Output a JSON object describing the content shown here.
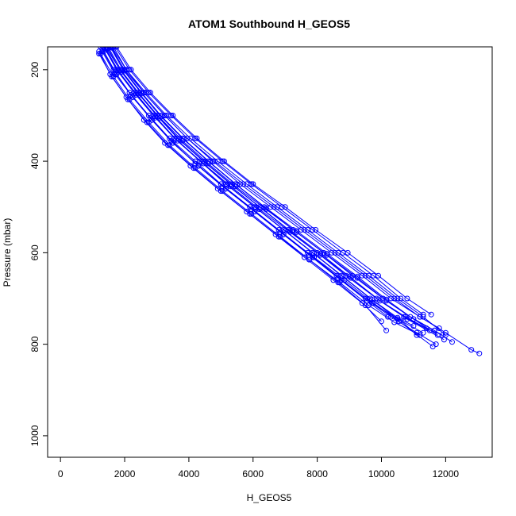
{
  "chart_data": {
    "type": "scatter",
    "title": "ATOM1 Southbound H_GEOS5",
    "xlabel": "H_GEOS5",
    "ylabel": "Pressure (mbar)",
    "xlim": [
      -400,
      13450
    ],
    "ylim": [
      1047,
      150
    ],
    "y_reversed": true,
    "x_ticks": [
      0,
      2000,
      4000,
      6000,
      8000,
      10000,
      12000
    ],
    "y_ticks": [
      200,
      400,
      600,
      800,
      1000
    ],
    "x_tick_labels": [
      "0",
      "2000",
      "4000",
      "6000",
      "8000",
      "10000",
      "12000"
    ],
    "y_tick_labels": [
      "200",
      "400",
      "600",
      "800",
      "1000"
    ],
    "grid": false,
    "legend": "none",
    "series_color": "#0000ff",
    "marker": "open-circle",
    "series": [
      {
        "x": [
          1250,
          1650,
          2150,
          2750,
          3400,
          4200,
          5000,
          5900,
          6800,
          7700,
          8600,
          9500,
          10300,
          11100,
          11700
        ],
        "y": [
          150,
          200,
          250,
          300,
          350,
          400,
          450,
          500,
          550,
          600,
          650,
          700,
          740,
          775,
          800
        ]
      },
      {
        "x": [
          1350,
          1750,
          2300,
          2900,
          3550,
          4350,
          5150,
          6050,
          6950,
          7850,
          8750,
          9650,
          10500,
          11300
        ],
        "y": [
          150,
          200,
          250,
          300,
          350,
          400,
          450,
          500,
          550,
          600,
          650,
          700,
          745,
          775
        ]
      },
      {
        "x": [
          1450,
          1850,
          2400,
          3000,
          3650,
          4450,
          5300,
          6200,
          7100,
          8000,
          8900,
          9850,
          10700,
          11500
        ],
        "y": [
          150,
          200,
          250,
          300,
          350,
          400,
          450,
          500,
          550,
          600,
          650,
          700,
          740,
          770
        ]
      },
      {
        "x": [
          1550,
          1950,
          2500,
          3100,
          3800,
          4600,
          5450,
          6350,
          7250,
          8200,
          9100,
          10050,
          10900,
          11650,
          12200
        ],
        "y": [
          150,
          200,
          250,
          300,
          350,
          400,
          450,
          500,
          550,
          600,
          650,
          700,
          740,
          770,
          795
        ]
      },
      {
        "x": [
          1650,
          2050,
          2600,
          3250,
          3950,
          4750,
          5600,
          6550,
          7500,
          8450,
          9400,
          10300,
          11200,
          12000,
          12800,
          13050
        ],
        "y": [
          150,
          200,
          250,
          300,
          350,
          400,
          450,
          500,
          550,
          600,
          650,
          700,
          740,
          775,
          812,
          820
        ]
      },
      {
        "x": [
          1300,
          1700,
          2200,
          2800,
          3450,
          4200,
          5050,
          5950,
          6850,
          7750,
          8650,
          9550,
          10200
        ],
        "y": [
          155,
          205,
          255,
          305,
          355,
          405,
          455,
          505,
          555,
          605,
          655,
          705,
          740
        ]
      },
      {
        "x": [
          1400,
          1800,
          2350,
          2950,
          3600,
          4400,
          5200,
          6100,
          7000,
          7900,
          8800,
          9700,
          10500,
          11000
        ],
        "y": [
          152,
          202,
          252,
          302,
          352,
          402,
          452,
          502,
          552,
          602,
          652,
          702,
          742,
          760
        ]
      },
      {
        "x": [
          1500,
          1900,
          2450,
          3050,
          3700,
          4500,
          5350,
          6250,
          7150,
          8100,
          9000,
          9900,
          10750,
          11400,
          11900
        ],
        "y": [
          152,
          202,
          252,
          302,
          352,
          402,
          452,
          502,
          552,
          602,
          652,
          702,
          740,
          765,
          780
        ]
      },
      {
        "x": [
          1600,
          2000,
          2550,
          3150,
          3850,
          4650,
          5500,
          6400,
          7350,
          8300,
          9250,
          10150,
          11000,
          11750
        ],
        "y": [
          152,
          202,
          252,
          302,
          352,
          402,
          452,
          502,
          552,
          602,
          652,
          702,
          745,
          780
        ]
      },
      {
        "x": [
          1200,
          1600,
          2100,
          2700,
          3350,
          4150,
          5000,
          5900,
          6800,
          7750,
          8700,
          9600,
          10400,
          11200
        ],
        "y": [
          165,
          215,
          265,
          315,
          365,
          415,
          465,
          515,
          565,
          615,
          665,
          715,
          752,
          780
        ]
      },
      {
        "x": [
          1300,
          1700,
          2250,
          2850,
          3500,
          4300,
          5150,
          6050,
          6950,
          7900,
          8850,
          9750,
          10550,
          11600
        ],
        "y": [
          160,
          210,
          260,
          310,
          360,
          410,
          460,
          510,
          560,
          610,
          660,
          710,
          750,
          805
        ]
      },
      {
        "x": [
          1700,
          2150,
          2750,
          3450,
          4200,
          5050,
          5950,
          6900,
          7850,
          8800,
          9750,
          10600,
          11300
        ],
        "y": [
          150,
          200,
          250,
          300,
          350,
          400,
          450,
          500,
          550,
          600,
          650,
          700,
          735
        ]
      },
      {
        "x": [
          1750,
          2200,
          2800,
          3500,
          4250,
          5100,
          6000,
          7000,
          7950,
          8950,
          9900,
          10800,
          11550
        ],
        "y": [
          150,
          200,
          250,
          300,
          350,
          400,
          450,
          500,
          550,
          600,
          650,
          700,
          735
        ]
      },
      {
        "x": [
          1200,
          1550,
          2050,
          2600,
          3250,
          4050,
          4900,
          5800,
          6700,
          7600,
          8500,
          9400,
          10000
        ],
        "y": [
          160,
          210,
          260,
          310,
          360,
          410,
          460,
          510,
          560,
          610,
          660,
          710,
          750
        ]
      },
      {
        "x": [
          1400,
          1800,
          2350,
          2950,
          3650,
          4450,
          5300,
          6200,
          7150,
          8100,
          9050,
          9950,
          10800,
          11950
        ],
        "y": [
          155,
          205,
          255,
          305,
          355,
          405,
          455,
          505,
          555,
          605,
          655,
          705,
          745,
          790
        ]
      },
      {
        "x": [
          1550,
          2000,
          2600,
          3250,
          3950,
          4800,
          5700,
          6650,
          7600,
          8550,
          9500,
          10400,
          11200,
          11800
        ],
        "y": [
          150,
          200,
          250,
          300,
          350,
          400,
          450,
          500,
          550,
          600,
          650,
          700,
          740,
          765
        ]
      },
      {
        "x": [
          1250,
          1650,
          2150,
          2750,
          3400,
          4200,
          5050,
          5950,
          6850,
          7750,
          8650,
          9500,
          10150
        ],
        "y": [
          165,
          215,
          265,
          315,
          365,
          415,
          465,
          515,
          565,
          615,
          665,
          715,
          770
        ]
      },
      {
        "x": [
          1600,
          2050,
          2650,
          3300,
          4050,
          4900,
          5800,
          6750,
          7700,
          8650,
          9600,
          10500,
          11300,
          12000
        ],
        "y": [
          150,
          200,
          250,
          300,
          350,
          400,
          450,
          500,
          550,
          600,
          650,
          700,
          740,
          780
        ]
      },
      {
        "x": [
          1350,
          1750,
          2250,
          2850,
          3500,
          4300,
          5150,
          6050,
          6950,
          7850,
          8750,
          9700,
          10600,
          11100
        ],
        "y": [
          160,
          210,
          260,
          310,
          360,
          410,
          460,
          510,
          560,
          610,
          660,
          710,
          748,
          780
        ]
      },
      {
        "x": [
          1450,
          1900,
          2450,
          3100,
          3800,
          4600,
          5450,
          6400,
          7350,
          8300,
          9250,
          10150,
          11000,
          11650
        ],
        "y": [
          155,
          205,
          255,
          305,
          355,
          405,
          455,
          505,
          555,
          605,
          655,
          705,
          745,
          770
        ]
      }
    ]
  }
}
